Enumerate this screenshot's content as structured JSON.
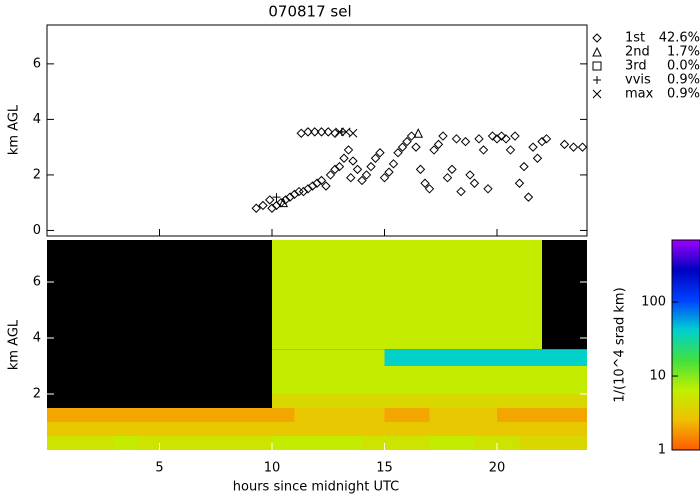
{
  "chart_data": [
    {
      "type": "scatter",
      "title": "070817 sel",
      "y_label": "km AGL",
      "xlim": [
        0,
        24
      ],
      "ylim": [
        -0.2,
        7.4
      ],
      "xticks": [
        5,
        10,
        15,
        20
      ],
      "yticks": [
        0,
        2,
        4,
        6
      ],
      "series": [
        {
          "name": "1st",
          "marker": "diamond",
          "color": "#000000",
          "share": 42.6,
          "share_label": "42.6%",
          "x": [
            9.3,
            9.6,
            9.9,
            10.0,
            10.2,
            10.4,
            10.6,
            10.8,
            11.0,
            11.2,
            11.4,
            11.6,
            11.8,
            12.0,
            12.2,
            12.4,
            12.6,
            12.8,
            13.0,
            13.2,
            13.4,
            13.5,
            13.6,
            13.8,
            14.0,
            14.2,
            14.4,
            14.6,
            14.8,
            15.0,
            15.2,
            15.4,
            15.6,
            15.8,
            16.0,
            16.2,
            16.4,
            16.6,
            16.8,
            17.0,
            17.2,
            17.4,
            17.6,
            17.8,
            18.0,
            18.2,
            18.4,
            18.6,
            18.8,
            19.0,
            19.2,
            19.4,
            19.6,
            19.8,
            20.0,
            20.2,
            20.4,
            20.6,
            20.8,
            21.0,
            21.2,
            21.4,
            21.6,
            21.8,
            22.0,
            22.2,
            23.0,
            23.4,
            23.8,
            11.3,
            11.6,
            11.9,
            12.2,
            12.5,
            12.8
          ],
          "values": [
            0.8,
            0.9,
            1.1,
            0.8,
            0.9,
            1.0,
            1.1,
            1.2,
            1.3,
            1.4,
            1.4,
            1.5,
            1.6,
            1.7,
            1.8,
            1.6,
            2.0,
            2.2,
            2.3,
            2.6,
            2.9,
            1.9,
            2.5,
            2.2,
            1.8,
            2.0,
            2.3,
            2.6,
            2.8,
            1.9,
            2.1,
            2.4,
            2.8,
            3.0,
            3.2,
            3.4,
            3.0,
            2.2,
            1.7,
            1.5,
            2.9,
            3.1,
            3.4,
            1.9,
            2.2,
            3.3,
            1.4,
            3.2,
            2.0,
            1.7,
            3.3,
            2.9,
            1.5,
            3.4,
            3.3,
            3.4,
            3.3,
            2.9,
            3.4,
            1.7,
            2.3,
            1.2,
            3.0,
            2.6,
            3.2,
            3.3,
            3.1,
            3.0,
            3.0,
            3.5,
            3.55,
            3.55,
            3.55,
            3.55,
            3.5
          ]
        },
        {
          "name": "2nd",
          "marker": "triangle",
          "color": "#000000",
          "share": 1.7,
          "share_label": "1.7%",
          "x": [
            10.5,
            16.5
          ],
          "values": [
            1.0,
            3.5
          ]
        },
        {
          "name": "3rd",
          "marker": "square",
          "color": "#000000",
          "share": 0.0,
          "share_label": "0.0%",
          "x": [],
          "values": []
        },
        {
          "name": "vvis",
          "marker": "plus",
          "color": "#000000",
          "share": 0.9,
          "share_label": "0.9%",
          "x": [
            10.2,
            13.1
          ],
          "values": [
            1.2,
            3.55
          ]
        },
        {
          "name": "max",
          "marker": "cross",
          "color": "#000000",
          "share": 0.9,
          "share_label": "0.9%",
          "x": [
            13.0,
            13.3,
            13.6
          ],
          "values": [
            3.55,
            3.55,
            3.5
          ]
        }
      ]
    },
    {
      "type": "heatmap",
      "x_label": "hours since midnight UTC",
      "y_label": "km AGL",
      "xlim": [
        0,
        24
      ],
      "ylim": [
        0,
        7.5
      ],
      "xticks": [
        5,
        10,
        15,
        20
      ],
      "yticks": [
        2,
        4,
        6
      ],
      "x_bins": [
        0,
        1,
        2,
        3,
        4,
        5,
        6,
        7,
        8,
        9,
        10,
        11,
        12,
        13,
        14,
        15,
        16,
        17,
        18,
        19,
        20,
        21,
        22,
        23,
        24
      ],
      "y_bins": [
        0,
        0.5,
        1,
        1.5,
        2,
        3,
        3.6,
        5,
        7.5
      ],
      "z": [
        [
          5,
          5,
          5,
          6,
          5,
          5,
          5,
          5,
          5,
          5,
          6,
          6,
          6,
          6,
          5,
          5,
          5,
          6,
          6,
          5,
          5,
          4,
          4,
          4
        ],
        [
          3,
          3,
          3,
          3,
          3,
          3,
          3,
          3,
          3,
          3,
          3,
          3,
          3,
          3,
          3,
          3,
          3,
          3,
          3,
          3,
          3,
          3,
          3,
          3
        ],
        [
          2,
          2,
          2,
          2,
          2,
          2,
          2,
          2,
          2,
          2,
          2,
          3,
          3,
          3,
          3,
          2,
          2,
          3,
          3,
          3,
          2,
          2,
          2,
          2
        ],
        [
          null,
          null,
          null,
          null,
          null,
          null,
          null,
          null,
          null,
          null,
          4,
          4,
          4,
          4,
          4,
          4,
          4,
          4,
          4,
          4,
          4,
          4,
          4,
          4
        ],
        [
          null,
          null,
          null,
          null,
          null,
          null,
          null,
          null,
          null,
          null,
          6,
          6,
          6,
          6,
          6,
          6,
          6,
          6,
          6,
          6,
          6,
          6,
          6,
          6
        ],
        [
          null,
          null,
          null,
          null,
          null,
          null,
          null,
          null,
          null,
          null,
          6,
          6,
          6,
          6,
          6,
          40,
          40,
          40,
          40,
          40,
          40,
          40,
          40,
          40
        ],
        [
          null,
          null,
          null,
          null,
          null,
          null,
          null,
          null,
          null,
          null,
          6,
          6,
          6,
          6,
          6,
          6,
          6,
          6,
          6,
          6,
          6,
          6,
          null,
          null
        ],
        [
          null,
          null,
          null,
          null,
          null,
          null,
          null,
          null,
          null,
          null,
          6,
          6,
          6,
          6,
          6,
          6,
          6,
          6,
          6,
          6,
          6,
          6,
          null,
          null
        ]
      ],
      "colorbar": {
        "label": "1/(10^4 srad km)",
        "lim": [
          1,
          690
        ],
        "ticks": [
          1,
          10,
          100
        ],
        "log": true,
        "colors": [
          "#ff5a00",
          "#f0c000",
          "#c0f000",
          "#40e040",
          "#00d0d0",
          "#0040ff",
          "#0000c0",
          "#a000ff"
        ]
      }
    }
  ]
}
